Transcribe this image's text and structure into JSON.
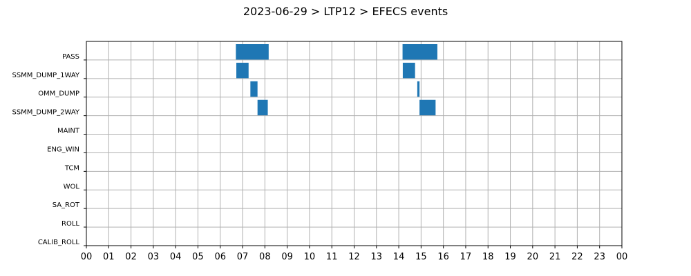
{
  "chart_data": {
    "type": "gantt",
    "title": "2023-06-29 > LTP12 > EFECS events",
    "x_unit": "hour",
    "xlim": [
      0,
      24
    ],
    "x_tick_labels": [
      "00",
      "01",
      "02",
      "03",
      "04",
      "05",
      "06",
      "07",
      "08",
      "09",
      "10",
      "11",
      "12",
      "13",
      "14",
      "15",
      "16",
      "17",
      "18",
      "19",
      "20",
      "21",
      "22",
      "23",
      "00"
    ],
    "categories": [
      "PASS",
      "SSMM_DUMP_1WAY",
      "OMM_DUMP",
      "SSMM_DUMP_2WAY",
      "MAINT",
      "ENG_WIN",
      "TCM",
      "WOL",
      "SA_ROT",
      "ROLL",
      "CALIB_ROLL"
    ],
    "grid": true,
    "bar_color": "#1f77b4",
    "events": [
      {
        "category": "PASS",
        "start": 6.7,
        "end": 8.17
      },
      {
        "category": "PASS",
        "start": 14.17,
        "end": 15.73
      },
      {
        "category": "SSMM_DUMP_1WAY",
        "start": 6.72,
        "end": 7.27
      },
      {
        "category": "SSMM_DUMP_1WAY",
        "start": 14.18,
        "end": 14.73
      },
      {
        "category": "OMM_DUMP",
        "start": 7.35,
        "end": 7.67
      },
      {
        "category": "OMM_DUMP",
        "start": 14.83,
        "end": 14.93
      },
      {
        "category": "SSMM_DUMP_2WAY",
        "start": 7.67,
        "end": 8.13
      },
      {
        "category": "SSMM_DUMP_2WAY",
        "start": 14.93,
        "end": 15.65
      }
    ]
  }
}
